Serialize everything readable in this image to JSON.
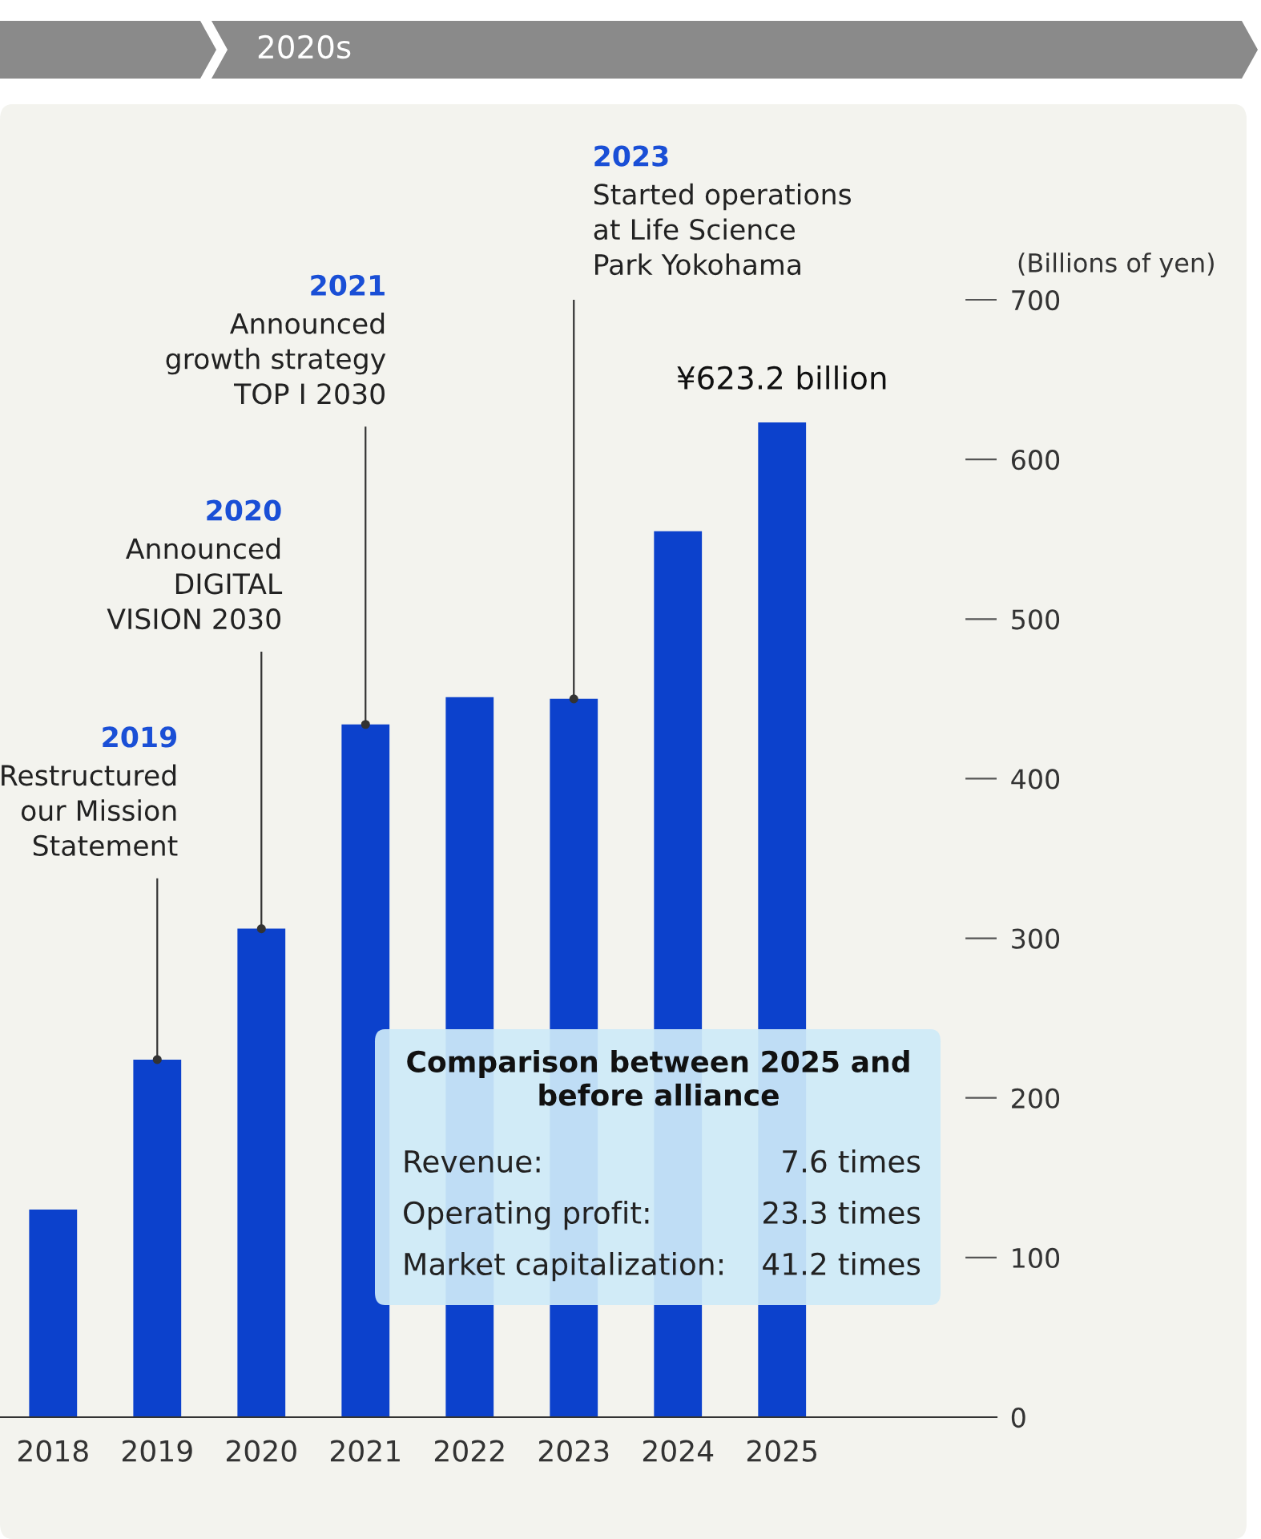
{
  "chart_data": {
    "type": "bar",
    "categories": [
      "2018",
      "2019",
      "2020",
      "2021",
      "2022",
      "2023",
      "2024",
      "2025"
    ],
    "values": [
      130,
      224,
      306,
      434,
      451,
      450,
      555,
      623.2
    ],
    "color": "#0c41cc",
    "value_labels": [
      null,
      null,
      null,
      null,
      null,
      null,
      null,
      "¥623.2 billion"
    ],
    "ylabel": "(Billions of yen)",
    "ylim": [
      0,
      700
    ],
    "yticks": [
      0,
      100,
      200,
      300,
      400,
      500,
      600,
      700
    ],
    "grid": false,
    "legend": false,
    "annotations": [
      {
        "text": "2019\nRestructured\nour Mission\nStatement",
        "x": "2019",
        "y": 224
      },
      {
        "text": "2020\nAnnounced\nDIGITAL\nVISION 2030",
        "x": "2020",
        "y": 306
      },
      {
        "text": "2021\nAnnounced\ngrowth strategy\nTOP I 2030",
        "x": "2021",
        "y": 434
      },
      {
        "text": "2023\nStarted operations\nat Life Science\nPark Yokohama",
        "x": "2023",
        "y": 450
      },
      "2020s",
      "Comparison between 2025 and\nbefore alliance",
      "Revenue:\t7.6 times",
      "Operating profit:\t23.3 times",
      "Market capitalization:\t41.2 times"
    ]
  }
}
